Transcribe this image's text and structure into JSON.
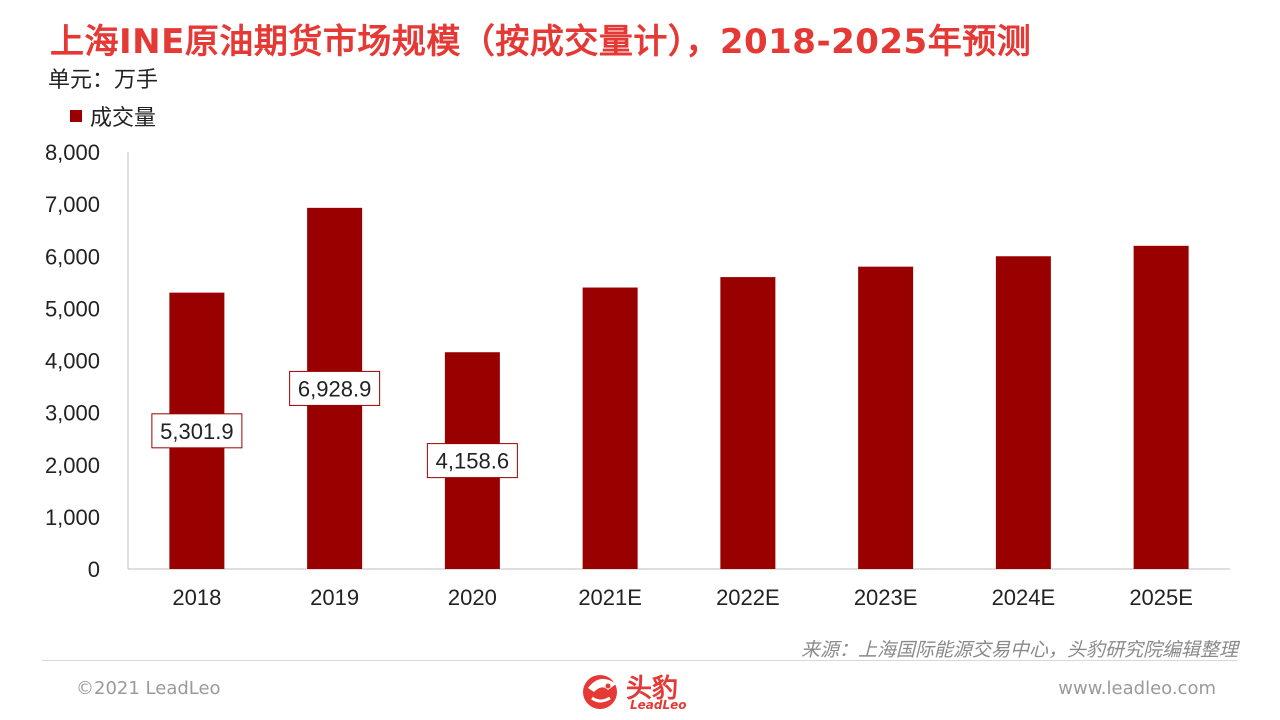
{
  "title": "上海INE原油期货市场规模（按成交量计），2018-2025年预测",
  "unit": "单元：万手",
  "source": "来源：上海国际能源交易中心，头豹研究院编辑整理",
  "footer": {
    "copyright": "©2021 LeadLeo",
    "website": "www.leadleo.com",
    "logo_text": "头豹",
    "logo_sub": "LeadLeo"
  },
  "colors": {
    "bar": "#990000",
    "title": "#e53935"
  },
  "chart_data": {
    "type": "bar",
    "title": "上海INE原油期货市场规模（按成交量计），2018-2025年预测",
    "xlabel": "",
    "ylabel": "单元：万手",
    "ylim": [
      0,
      8000
    ],
    "yticks": [
      0,
      1000,
      2000,
      3000,
      4000,
      5000,
      6000,
      7000,
      8000
    ],
    "ytick_labels": [
      "0",
      "1,000",
      "2,000",
      "3,000",
      "4,000",
      "5,000",
      "6,000",
      "7,000",
      "8,000"
    ],
    "grid": false,
    "legend_position": "top-left",
    "categories": [
      "2018",
      "2019",
      "2020",
      "2021E",
      "2022E",
      "2023E",
      "2024E",
      "2025E"
    ],
    "series": [
      {
        "name": "成交量",
        "values": [
          5301.9,
          6928.9,
          4158.6,
          5400,
          5600,
          5800,
          6000,
          6200
        ],
        "data_labels": [
          "5,301.9",
          "6,928.9",
          "4,158.6",
          null,
          null,
          null,
          null,
          null
        ]
      }
    ]
  }
}
